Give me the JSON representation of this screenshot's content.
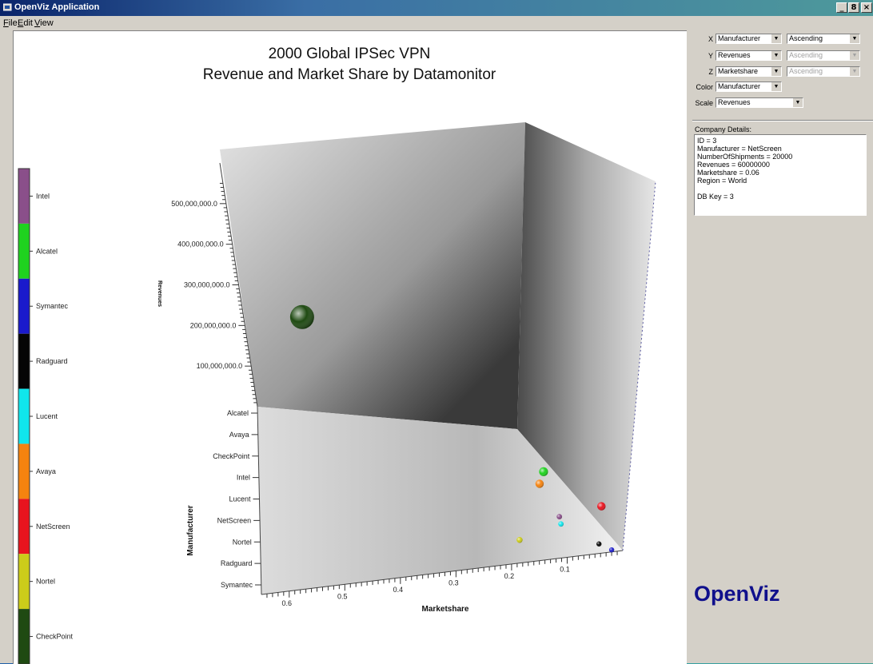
{
  "window": {
    "title": "OpenViz Application",
    "buttons": [
      "_",
      "8",
      "×"
    ]
  },
  "menubar": [
    {
      "underline": "F",
      "rest": "ile"
    },
    {
      "underline": "E",
      "rest": "dit"
    },
    {
      "underline": "V",
      "rest": "iew"
    }
  ],
  "chart_data": {
    "type": "scatter",
    "title": "2000 Global IPSec VPN",
    "subtitle": "Revenue and Market Share by Datamonitor",
    "ylabel": "Revenues",
    "zlabel": "Manufacturer",
    "xlabel": "Marketshare",
    "y_ticks": [
      "500,000,000.0",
      "400,000,000.0",
      "300,000,000.0",
      "200,000,000.0",
      "100,000,000.0"
    ],
    "z_ticks": [
      "Alcatel",
      "Avaya",
      "CheckPoint",
      "Intel",
      "Lucent",
      "NetScreen",
      "Nortel",
      "Radguard",
      "Symantec"
    ],
    "x_ticks": [
      "0.6",
      "0.5",
      "0.4",
      "0.3",
      "0.2",
      "0.1"
    ],
    "legend": [
      {
        "name": "Intel",
        "color": "#8a4f8a"
      },
      {
        "name": "Alcatel",
        "color": "#1fd21f"
      },
      {
        "name": "Symantec",
        "color": "#1a1acc"
      },
      {
        "name": "Radguard",
        "color": "#050505"
      },
      {
        "name": "Lucent",
        "color": "#10e6ec"
      },
      {
        "name": "Avaya",
        "color": "#f5830f"
      },
      {
        "name": "NetScreen",
        "color": "#e8141e"
      },
      {
        "name": "Nortel",
        "color": "#cccc1a"
      },
      {
        "name": "CheckPoint",
        "color": "#1f4a12"
      }
    ],
    "points": [
      {
        "manufacturer": "CheckPoint",
        "revenues": 560000000,
        "marketshare": 0.62,
        "color": "#1f4a12"
      },
      {
        "manufacturer": "Alcatel",
        "revenues": 70000000,
        "marketshare": 0.2,
        "color": "#1fd21f"
      },
      {
        "manufacturer": "Avaya",
        "revenues": 60000000,
        "marketshare": 0.2,
        "color": "#f5830f"
      },
      {
        "manufacturer": "Nortel",
        "revenues": 20000000,
        "marketshare": 0.2,
        "color": "#cccc1a"
      },
      {
        "manufacturer": "Intel",
        "revenues": 10000000,
        "marketshare": 0.15,
        "color": "#8a4f8a"
      },
      {
        "manufacturer": "Lucent",
        "revenues": 10000000,
        "marketshare": 0.14,
        "color": "#10e6ec"
      },
      {
        "manufacturer": "NetScreen",
        "revenues": 60000000,
        "marketshare": 0.06,
        "color": "#e8141e"
      },
      {
        "manufacturer": "Radguard",
        "revenues": 5000000,
        "marketshare": 0.05,
        "color": "#050505"
      },
      {
        "manufacturer": "Symantec",
        "revenues": 5000000,
        "marketshare": 0.02,
        "color": "#1a1acc"
      }
    ]
  },
  "controls": {
    "x": {
      "label": "X",
      "field": "Manufacturer",
      "order": "Ascending",
      "order_enabled": true
    },
    "y": {
      "label": "Y",
      "field": "Revenues",
      "order": "Ascending",
      "order_enabled": false
    },
    "z": {
      "label": "Z",
      "field": "Marketshare",
      "order": "Ascending",
      "order_enabled": false
    },
    "color": {
      "label": "Color",
      "field": "Manufacturer"
    },
    "scale": {
      "label": "Scale",
      "field": "Revenues"
    }
  },
  "details": {
    "heading": "Company Details:",
    "text": "ID = 3\nManufacturer = NetScreen\nNumberOfShipments = 20000\nRevenues = 60000000\nMarketshare = 0.06\nRegion = World\n\nDB Key = 3"
  },
  "brand": "OpenViz"
}
